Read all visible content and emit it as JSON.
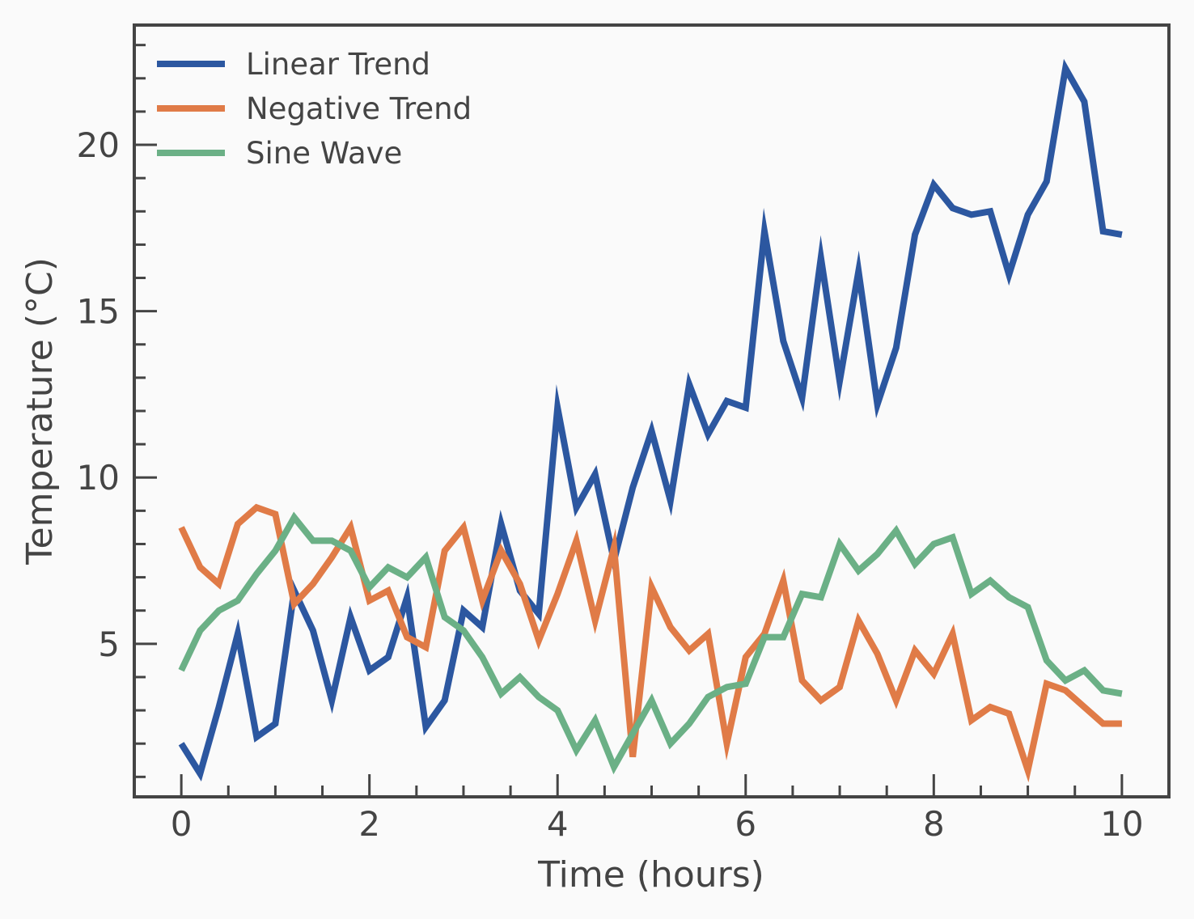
{
  "chart_data": {
    "type": "line",
    "title": "",
    "xlabel": "Time (hours)",
    "ylabel": "Temperature (°C)",
    "xlim": [
      -0.5,
      10.5
    ],
    "ylim": [
      0.4,
      23.6
    ],
    "xticks": [
      0,
      2,
      4,
      6,
      8,
      10
    ],
    "yticks": [
      5,
      10,
      15,
      20
    ],
    "xtick_labels": [
      "0",
      "2",
      "4",
      "6",
      "8",
      "10"
    ],
    "ytick_labels": [
      "5",
      "10",
      "15",
      "20"
    ],
    "grid": false,
    "legend_position": "upper-left",
    "x": [
      0,
      0.2,
      0.4,
      0.6,
      0.8,
      1.0,
      1.2,
      1.4,
      1.6,
      1.8,
      2.0,
      2.2,
      2.4,
      2.6,
      2.8,
      3.0,
      3.2,
      3.4,
      3.6,
      3.8,
      4.0,
      4.2,
      4.4,
      4.6,
      4.8,
      5.0,
      5.2,
      5.4,
      5.6,
      5.8,
      6.0,
      6.2,
      6.4,
      6.6,
      6.8,
      7.0,
      7.2,
      7.4,
      7.6,
      7.8,
      8.0,
      8.2,
      8.4,
      8.6,
      8.8,
      9.0,
      9.2,
      9.4,
      9.6,
      9.8,
      10.0
    ],
    "series": [
      {
        "name": "Linear Trend",
        "color": "#2c57a0",
        "values": [
          2.0,
          1.1,
          3.1,
          5.3,
          2.2,
          2.6,
          6.6,
          5.4,
          3.3,
          5.8,
          4.2,
          4.6,
          6.4,
          2.5,
          3.3,
          6.0,
          5.5,
          8.6,
          6.6,
          5.9,
          12.1,
          9.1,
          10.1,
          7.5,
          9.7,
          11.4,
          9.3,
          12.8,
          11.3,
          12.3,
          12.1,
          17.4,
          14.1,
          12.4,
          16.6,
          12.9,
          16.2,
          12.2,
          13.9,
          17.3,
          18.8,
          18.1,
          17.9,
          18.0,
          16.1,
          17.9,
          18.9,
          22.3,
          21.3,
          17.4,
          17.3
        ]
      },
      {
        "name": "Negative Trend",
        "color": "#e07b47",
        "values": [
          8.5,
          7.3,
          6.8,
          8.6,
          9.1,
          8.9,
          6.2,
          6.8,
          7.6,
          8.5,
          6.3,
          6.6,
          5.2,
          4.9,
          7.8,
          8.5,
          6.3,
          7.8,
          6.8,
          5.1,
          6.5,
          8.1,
          5.7,
          7.9,
          1.6,
          6.7,
          5.5,
          4.8,
          5.3,
          2.0,
          4.6,
          5.3,
          6.9,
          3.9,
          3.3,
          3.7,
          5.7,
          4.7,
          3.3,
          4.8,
          4.1,
          5.3,
          2.7,
          3.1,
          2.9,
          1.2,
          3.8,
          3.6,
          3.1,
          2.6,
          2.6
        ]
      },
      {
        "name": "Sine Wave",
        "color": "#6bb086",
        "values": [
          4.2,
          5.4,
          6.0,
          6.3,
          7.1,
          7.8,
          8.8,
          8.1,
          8.1,
          7.8,
          6.7,
          7.3,
          7.0,
          7.6,
          5.8,
          5.4,
          4.6,
          3.5,
          4.0,
          3.4,
          3.0,
          1.8,
          2.7,
          1.3,
          2.3,
          3.3,
          2.0,
          2.6,
          3.4,
          3.7,
          3.8,
          5.2,
          5.2,
          6.5,
          6.4,
          8.0,
          7.2,
          7.7,
          8.4,
          7.4,
          8.0,
          8.2,
          6.5,
          6.9,
          6.4,
          6.1,
          4.5,
          3.9,
          4.2,
          3.6,
          3.5
        ]
      }
    ]
  }
}
